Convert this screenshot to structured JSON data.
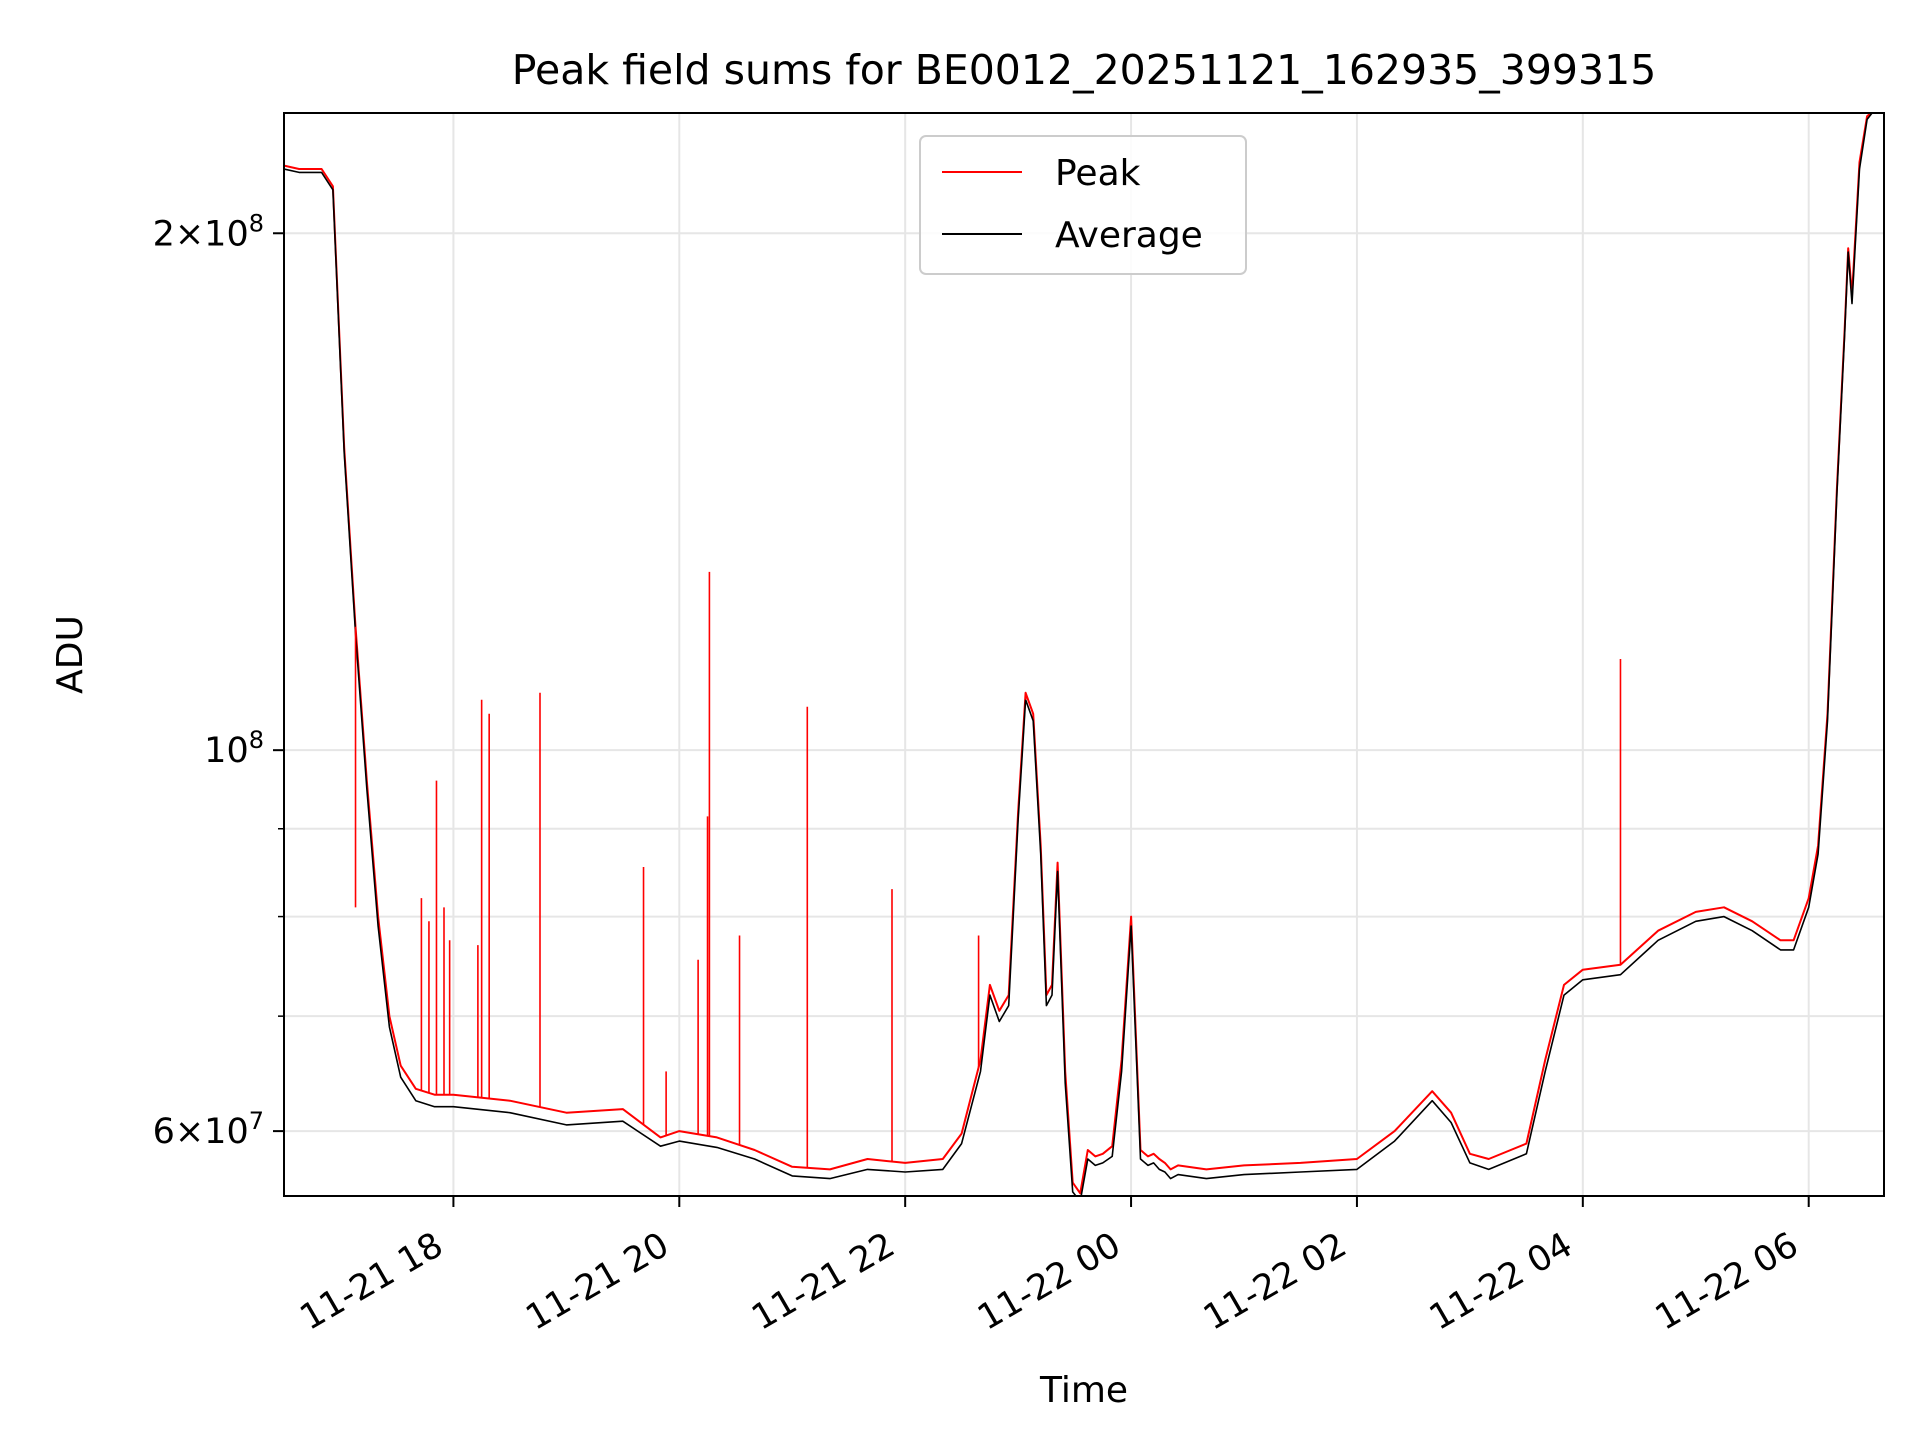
{
  "chart_data": {
    "type": "line",
    "title": "Peak field sums for BE0012_20251121_162935_399315",
    "xlabel": "Time",
    "ylabel": "ADU",
    "yscale": "log",
    "xlim": [
      "2025-11-21T16:30",
      "2025-11-22T06:40"
    ],
    "ylim": [
      55000000,
      235000000
    ],
    "x_ticks": [
      "2025-11-21T18:00",
      "2025-11-21T20:00",
      "2025-11-21T22:00",
      "2025-11-22T00:00",
      "2025-11-22T02:00",
      "2025-11-22T04:00",
      "2025-11-22T06:00"
    ],
    "x_tick_labels": [
      "11-21 18",
      "11-21 20",
      "11-21 22",
      "11-22 00",
      "11-22 02",
      "11-22 04",
      "11-22 06"
    ],
    "y_ticks": [
      {
        "value": 60000000,
        "mantissa": "6",
        "base": "10",
        "exponent": "7"
      },
      {
        "value": 100000000,
        "mantissa": "",
        "base": "10",
        "exponent": "8"
      },
      {
        "value": 200000000,
        "mantissa": "2",
        "base": "10",
        "exponent": "8"
      }
    ],
    "y_minor_ticks": [
      70000000,
      80000000,
      90000000
    ],
    "grid": true,
    "legend": {
      "placement": "upper center"
    },
    "series": [
      {
        "name": "Peak",
        "color": "#ff0000",
        "x": [
          "2025-11-21T16:30",
          "2025-11-21T16:38",
          "2025-11-21T16:42",
          "2025-11-21T16:50",
          "2025-11-21T16:56",
          "2025-11-21T17:02",
          "2025-11-21T17:08",
          "2025-11-21T17:14",
          "2025-11-21T17:20",
          "2025-11-21T17:26",
          "2025-11-21T17:32",
          "2025-11-21T17:40",
          "2025-11-21T17:50",
          "2025-11-21T18:00",
          "2025-11-21T18:30",
          "2025-11-21T19:00",
          "2025-11-21T19:30",
          "2025-11-21T19:50",
          "2025-11-21T20:00",
          "2025-11-21T20:20",
          "2025-11-21T20:40",
          "2025-11-21T21:00",
          "2025-11-21T21:20",
          "2025-11-21T21:40",
          "2025-11-21T22:00",
          "2025-11-21T22:20",
          "2025-11-21T22:30",
          "2025-11-21T22:40",
          "2025-11-21T22:45",
          "2025-11-21T22:50",
          "2025-11-21T22:55",
          "2025-11-21T23:00",
          "2025-11-21T23:04",
          "2025-11-21T23:08",
          "2025-11-21T23:12",
          "2025-11-21T23:15",
          "2025-11-21T23:18",
          "2025-11-21T23:21",
          "2025-11-21T23:25",
          "2025-11-21T23:29",
          "2025-11-21T23:33",
          "2025-11-21T23:37",
          "2025-11-21T23:41",
          "2025-11-21T23:45",
          "2025-11-21T23:50",
          "2025-11-21T23:55",
          "2025-11-22T00:00",
          "2025-11-22T00:05",
          "2025-11-22T00:09",
          "2025-11-22T00:12",
          "2025-11-22T00:15",
          "2025-11-22T00:18",
          "2025-11-22T00:21",
          "2025-11-22T00:25",
          "2025-11-22T00:40",
          "2025-11-22T01:00",
          "2025-11-22T01:30",
          "2025-11-22T02:00",
          "2025-11-22T02:20",
          "2025-11-22T02:40",
          "2025-11-22T02:50",
          "2025-11-22T03:00",
          "2025-11-22T03:10",
          "2025-11-22T03:30",
          "2025-11-22T03:40",
          "2025-11-22T03:50",
          "2025-11-22T04:00",
          "2025-11-22T04:20",
          "2025-11-22T04:40",
          "2025-11-22T05:00",
          "2025-11-22T05:15",
          "2025-11-22T05:30",
          "2025-11-22T05:45",
          "2025-11-22T05:52",
          "2025-11-22T06:00",
          "2025-11-22T06:05",
          "2025-11-22T06:10",
          "2025-11-22T06:15",
          "2025-11-22T06:19",
          "2025-11-22T06:21",
          "2025-11-22T06:23",
          "2025-11-22T06:27",
          "2025-11-22T06:31",
          "2025-11-22T06:35"
        ],
        "y": [
          219000000,
          218000000,
          218000000,
          218000000,
          213000000,
          150000000,
          118000000,
          96000000,
          80000000,
          70000000,
          65500000,
          63500000,
          63000000,
          63000000,
          62500000,
          61500000,
          61800000,
          59500000,
          60000000,
          59500000,
          58500000,
          57200000,
          57000000,
          57800000,
          57500000,
          57800000,
          59800000,
          66000000,
          73000000,
          70500000,
          72000000,
          92000000,
          108000000,
          105000000,
          88000000,
          72000000,
          73000000,
          86000000,
          65000000,
          56000000,
          55200000,
          58500000,
          58000000,
          58200000,
          58800000,
          66000000,
          80000000,
          58500000,
          58000000,
          58200000,
          57800000,
          57500000,
          57000000,
          57300000,
          57000000,
          57300000,
          57500000,
          57800000,
          60000000,
          63300000,
          61500000,
          58200000,
          57800000,
          59000000,
          66000000,
          73000000,
          74500000,
          75000000,
          78500000,
          80500000,
          81000000,
          79500000,
          77500000,
          77500000,
          82000000,
          88000000,
          105000000,
          142000000,
          175000000,
          196000000,
          184000000,
          220000000,
          234000000,
          236000000
        ]
      },
      {
        "name": "Average",
        "color": "#000000",
        "x": [
          "2025-11-21T16:30",
          "2025-11-21T16:38",
          "2025-11-21T16:42",
          "2025-11-21T16:50",
          "2025-11-21T16:56",
          "2025-11-21T17:02",
          "2025-11-21T17:08",
          "2025-11-21T17:14",
          "2025-11-21T17:20",
          "2025-11-21T17:26",
          "2025-11-21T17:32",
          "2025-11-21T17:40",
          "2025-11-21T17:50",
          "2025-11-21T18:00",
          "2025-11-21T18:30",
          "2025-11-21T19:00",
          "2025-11-21T19:30",
          "2025-11-21T19:50",
          "2025-11-21T20:00",
          "2025-11-21T20:20",
          "2025-11-21T20:40",
          "2025-11-21T21:00",
          "2025-11-21T21:20",
          "2025-11-21T21:40",
          "2025-11-21T22:00",
          "2025-11-21T22:20",
          "2025-11-21T22:30",
          "2025-11-21T22:40",
          "2025-11-21T22:45",
          "2025-11-21T22:50",
          "2025-11-21T22:55",
          "2025-11-21T23:00",
          "2025-11-21T23:04",
          "2025-11-21T23:08",
          "2025-11-21T23:12",
          "2025-11-21T23:15",
          "2025-11-21T23:18",
          "2025-11-21T23:21",
          "2025-11-21T23:25",
          "2025-11-21T23:29",
          "2025-11-21T23:33",
          "2025-11-21T23:37",
          "2025-11-21T23:41",
          "2025-11-21T23:45",
          "2025-11-21T23:50",
          "2025-11-21T23:55",
          "2025-11-22T00:00",
          "2025-11-22T00:05",
          "2025-11-22T00:09",
          "2025-11-22T00:12",
          "2025-11-22T00:15",
          "2025-11-22T00:18",
          "2025-11-22T00:21",
          "2025-11-22T00:25",
          "2025-11-22T00:40",
          "2025-11-22T01:00",
          "2025-11-22T01:30",
          "2025-11-22T02:00",
          "2025-11-22T02:20",
          "2025-11-22T02:40",
          "2025-11-22T02:50",
          "2025-11-22T03:00",
          "2025-11-22T03:10",
          "2025-11-22T03:30",
          "2025-11-22T03:40",
          "2025-11-22T03:50",
          "2025-11-22T04:00",
          "2025-11-22T04:20",
          "2025-11-22T04:40",
          "2025-11-22T05:00",
          "2025-11-22T05:15",
          "2025-11-22T05:30",
          "2025-11-22T05:45",
          "2025-11-22T05:52",
          "2025-11-22T06:00",
          "2025-11-22T06:05",
          "2025-11-22T06:10",
          "2025-11-22T06:15",
          "2025-11-22T06:19",
          "2025-11-22T06:21",
          "2025-11-22T06:23",
          "2025-11-22T06:27",
          "2025-11-22T06:31",
          "2025-11-22T06:35"
        ],
        "y": [
          218000000,
          217000000,
          217000000,
          217000000,
          212000000,
          149000000,
          117000000,
          95000000,
          79000000,
          69000000,
          64500000,
          62500000,
          62000000,
          62000000,
          61500000,
          60500000,
          60800000,
          58800000,
          59200000,
          58700000,
          57800000,
          56500000,
          56300000,
          57000000,
          56800000,
          57000000,
          59000000,
          65000000,
          72000000,
          69500000,
          71000000,
          91000000,
          107000000,
          104000000,
          87000000,
          71000000,
          72000000,
          85000000,
          64000000,
          55300000,
          54600000,
          57800000,
          57300000,
          57500000,
          58000000,
          65000000,
          79000000,
          57800000,
          57300000,
          57500000,
          57000000,
          56800000,
          56300000,
          56600000,
          56300000,
          56600000,
          56800000,
          57000000,
          59200000,
          62500000,
          60700000,
          57500000,
          57000000,
          58200000,
          65000000,
          72000000,
          73500000,
          74000000,
          77500000,
          79500000,
          80000000,
          78500000,
          76500000,
          76500000,
          81000000,
          87000000,
          104000000,
          141000000,
          174000000,
          195000000,
          182000000,
          218000000,
          233000000,
          236000000
        ]
      }
    ],
    "spikes": {
      "series": "Peak",
      "x": [
        "2025-11-21T17:08",
        "2025-11-21T17:43",
        "2025-11-21T17:47",
        "2025-11-21T17:51",
        "2025-11-21T17:55",
        "2025-11-21T17:58",
        "2025-11-21T18:13",
        "2025-11-21T18:15",
        "2025-11-21T18:19",
        "2025-11-21T18:46",
        "2025-11-21T19:41",
        "2025-11-21T19:53",
        "2025-11-21T20:10",
        "2025-11-21T20:15",
        "2025-11-21T20:16",
        "2025-11-21T20:32",
        "2025-11-21T21:08",
        "2025-11-21T21:53",
        "2025-11-21T22:39",
        "2025-11-21T23:04",
        "2025-11-22T04:20"
      ],
      "y": [
        81000000,
        82000000,
        79500000,
        96000000,
        81000000,
        77500000,
        77000000,
        107000000,
        105000000,
        108000000,
        85500000,
        65000000,
        75500000,
        91500000,
        127000000,
        78000000,
        106000000,
        83000000,
        78000000,
        107000000,
        113000000
      ]
    }
  }
}
